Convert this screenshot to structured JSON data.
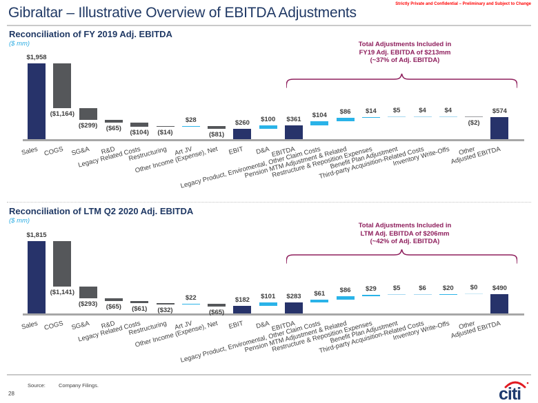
{
  "page": {
    "title": "Gibraltar – Illustrative Overview of EBITDA Adjustments",
    "confidential_notice": "Strictly Private and Confidential – Preliminary and Subject to Change",
    "page_number": "28",
    "footer": {
      "source_label": "Source:",
      "source_value": "Company Filings."
    },
    "logo_text": "citi"
  },
  "colors": {
    "navy": "#27336A",
    "gray": "#55575A",
    "blue": "#2AB3E8",
    "pale": "#A5D8F0",
    "fade": "#C9E7F5",
    "grayline": "#9B9DA0",
    "annotation": "#8E1E5C",
    "title_blue": "#1F3864",
    "units_blue": "#29ABE2",
    "confidential_red": "#FF0000",
    "logo_blue": "#1E3A6E",
    "logo_red": "#E11B22",
    "axis_gray": "#A7A7A7"
  },
  "chart_data": [
    {
      "type": "bar",
      "subtype": "waterfall",
      "title": "Reconciliation of FY 2019 Adj. EBITDA",
      "units": "($ mm)",
      "ylim": [
        0,
        1958
      ],
      "grid": false,
      "annotation": {
        "lines": [
          "Total Adjustments Included in",
          "FY19 Adj. EBITDA of $213mm",
          "(~37% of Adj. EBITDA)"
        ]
      },
      "items": [
        {
          "label": "Sales",
          "value": 1958,
          "display": "$1,958",
          "kind": "total",
          "color": "navy"
        },
        {
          "label": "COGS",
          "value": -1164,
          "display": "($1,164)",
          "kind": "delta",
          "color": "gray"
        },
        {
          "label": "SG&A",
          "value": -299,
          "display": "($299)",
          "kind": "delta",
          "color": "gray"
        },
        {
          "label": "R&D",
          "value": -65,
          "display": "($65)",
          "kind": "delta",
          "color": "gray"
        },
        {
          "label": "Legacy Related Costs",
          "value": -104,
          "display": "($104)",
          "kind": "delta",
          "color": "gray"
        },
        {
          "label": "Restructuring",
          "value": -14,
          "display": "($14)",
          "kind": "delta",
          "color": "gray"
        },
        {
          "label": "Art JV",
          "value": 28,
          "display": "$28",
          "kind": "delta",
          "color": "blue"
        },
        {
          "label": "Other Income (Expense), Net",
          "value": -81,
          "display": "($81)",
          "kind": "delta",
          "color": "gray"
        },
        {
          "label": "EBIT",
          "value": 260,
          "display": "$260",
          "kind": "total",
          "color": "navy"
        },
        {
          "label": "D&A",
          "value": 100,
          "display": "$100",
          "kind": "delta",
          "color": "blue"
        },
        {
          "label": "EBITDA",
          "value": 361,
          "display": "$361",
          "kind": "total",
          "color": "navy"
        },
        {
          "label": "Legacy Product, Enviromental, Other Claim Costs",
          "value": 104,
          "display": "$104",
          "kind": "delta",
          "color": "blue"
        },
        {
          "label": "Pension MTM Adjustment & Related",
          "value": 86,
          "display": "$86",
          "kind": "delta",
          "color": "blue"
        },
        {
          "label": "Restructure & Reposition Expenses",
          "value": 14,
          "display": "$14",
          "kind": "delta",
          "color": "blue"
        },
        {
          "label": "Benefit Plan Adjustment",
          "value": 5,
          "display": "$5",
          "kind": "delta",
          "color": "pale"
        },
        {
          "label": "Third-party Acquisition-Related Costs",
          "value": 4,
          "display": "$4",
          "kind": "delta",
          "color": "pale"
        },
        {
          "label": "Inventory Write-Offs",
          "value": 4,
          "display": "$4",
          "kind": "delta",
          "color": "pale"
        },
        {
          "label": "Other",
          "value": -2,
          "display": "($2)",
          "kind": "delta",
          "color": "grayline"
        },
        {
          "label": "Adjusted EBITDA",
          "value": 574,
          "display": "$574",
          "kind": "total",
          "color": "navy"
        }
      ]
    },
    {
      "type": "bar",
      "subtype": "waterfall",
      "title": "Reconciliation of LTM Q2 2020 Adj. EBITDA",
      "units": "($ mm)",
      "ylim": [
        0,
        1815
      ],
      "grid": false,
      "annotation": {
        "lines": [
          "Total Adjustments Included in",
          "LTM Adj. EBITDA of $206mm",
          "(~42% of Adj. EBITDA)"
        ]
      },
      "items": [
        {
          "label": "Sales",
          "value": 1815,
          "display": "$1,815",
          "kind": "total",
          "color": "navy"
        },
        {
          "label": "COGS",
          "value": -1141,
          "display": "($1,141)",
          "kind": "delta",
          "color": "gray"
        },
        {
          "label": "SG&A",
          "value": -293,
          "display": "($293)",
          "kind": "delta",
          "color": "gray"
        },
        {
          "label": "R&D",
          "value": -65,
          "display": "($65)",
          "kind": "delta",
          "color": "gray"
        },
        {
          "label": "Legacy Related Costs",
          "value": -61,
          "display": "($61)",
          "kind": "delta",
          "color": "gray"
        },
        {
          "label": "Restructuring",
          "value": -32,
          "display": "($32)",
          "kind": "delta",
          "color": "gray"
        },
        {
          "label": "Art JV",
          "value": 22,
          "display": "$22",
          "kind": "delta",
          "color": "blue"
        },
        {
          "label": "Other Income (Expense), Net",
          "value": -65,
          "display": "($65)",
          "kind": "delta",
          "color": "gray"
        },
        {
          "label": "EBIT",
          "value": 182,
          "display": "$182",
          "kind": "total",
          "color": "navy"
        },
        {
          "label": "D&A",
          "value": 101,
          "display": "$101",
          "kind": "delta",
          "color": "blue"
        },
        {
          "label": "EBITDA",
          "value": 283,
          "display": "$283",
          "kind": "total",
          "color": "navy"
        },
        {
          "label": "Legacy Product, Enviromental, Other Claim Costs",
          "value": 61,
          "display": "$61",
          "kind": "delta",
          "color": "blue"
        },
        {
          "label": "Pension MTM Adjustment & Related",
          "value": 86,
          "display": "$86",
          "kind": "delta",
          "color": "blue"
        },
        {
          "label": "Restructure & Reposition Expenses",
          "value": 29,
          "display": "$29",
          "kind": "delta",
          "color": "blue"
        },
        {
          "label": "Benefit Plan Adjustment",
          "value": 5,
          "display": "$5",
          "kind": "delta",
          "color": "pale"
        },
        {
          "label": "Third-party Acquisition-Related Costs",
          "value": 6,
          "display": "$6",
          "kind": "delta",
          "color": "pale"
        },
        {
          "label": "Inventory Write-Offs",
          "value": 20,
          "display": "$20",
          "kind": "delta",
          "color": "blue"
        },
        {
          "label": "Other",
          "value": 0,
          "display": "$0",
          "kind": "delta",
          "color": "fade"
        },
        {
          "label": "Adjusted EBITDA",
          "value": 490,
          "display": "$490",
          "kind": "total",
          "color": "navy"
        }
      ]
    }
  ]
}
